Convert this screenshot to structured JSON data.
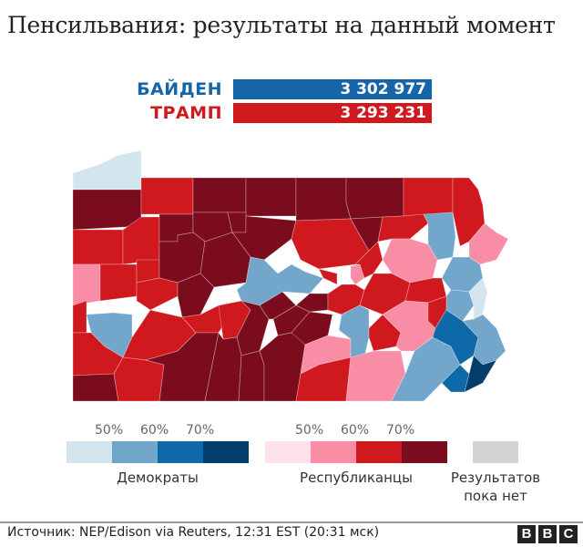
{
  "title": "Пенсильвания: результаты на данный момент",
  "candidates": [
    {
      "name": "БАЙДЕН",
      "votes": "3 302 977",
      "color": "#1565a8"
    },
    {
      "name": "ТРАМП",
      "votes": "3 293 231",
      "color": "#d0191f"
    }
  ],
  "colors": {
    "d1": "#d3e6ef",
    "d2": "#72a6cb",
    "d3": "#0e69a8",
    "d4": "#033d6a",
    "r1": "#fde2ea",
    "r2": "#f88da5",
    "r3": "#d0191f",
    "r4": "#7a0c1e",
    "none": "#d4d4d4"
  },
  "legend": {
    "democrats": {
      "label": "Демократы",
      "ticks": [
        "50%",
        "60%",
        "70%"
      ]
    },
    "republicans": {
      "label": "Республиканцы",
      "ticks": [
        "50%",
        "60%",
        "70%"
      ]
    },
    "no_results": {
      "label_line1": "Результатов",
      "label_line2": "пока нет"
    }
  },
  "footer": {
    "source": "Источник: NEP/Edison via Reuters, 12:31 EST (20:31 мск)",
    "logo": [
      "B",
      "B",
      "C"
    ]
  },
  "map_regions": [
    {
      "name": "erie",
      "c": "d1",
      "p": "80,208 80,190 110,180 130,170 155,165 155,208"
    },
    {
      "name": "crawford",
      "c": "r4",
      "p": "80,208 155,208 155,248 80,252"
    },
    {
      "name": "warren",
      "c": "r3",
      "p": "155,195 212,195 212,235 155,235"
    },
    {
      "name": "mckean",
      "c": "r4",
      "p": "212,195 270,195 270,233 212,233"
    },
    {
      "name": "potter",
      "c": "r4",
      "p": "270,195 325,195 325,237 270,237"
    },
    {
      "name": "tioga",
      "c": "r4",
      "p": "325,195 380,195 380,222 385,240 325,242"
    },
    {
      "name": "bradford",
      "c": "r4",
      "p": "380,195 443,195 443,237 420,238 385,240 380,222"
    },
    {
      "name": "susquehanna",
      "c": "r3",
      "p": "443,195 497,195 497,233 443,237"
    },
    {
      "name": "wayne",
      "c": "r3",
      "p": "497,195 515,195 525,208 530,225 532,245 515,265 505,270 497,233"
    },
    {
      "name": "mercer",
      "c": "r3",
      "p": "80,252 135,252 135,290 80,290"
    },
    {
      "name": "venango",
      "c": "r3",
      "p": "135,252 155,238 175,238 175,285 135,290"
    },
    {
      "name": "forest",
      "c": "r4",
      "p": "175,235 212,235 212,255 195,258 195,265 175,265"
    },
    {
      "name": "elk",
      "c": "r4",
      "p": "212,233 250,233 255,255 225,265 212,255"
    },
    {
      "name": "cameron",
      "c": "r4",
      "p": "250,233 270,233 270,255 255,255"
    },
    {
      "name": "clinton",
      "c": "r4",
      "p": "270,237 325,242 320,262 290,285 275,282 255,255 270,255"
    },
    {
      "name": "lycoming",
      "c": "r3",
      "p": "325,242 385,240 395,258 405,275 390,290 350,295 330,285 320,262"
    },
    {
      "name": "sullivan",
      "c": "r4",
      "p": "385,240 420,238 415,265 405,275 395,258"
    },
    {
      "name": "wyoming",
      "c": "r3",
      "p": "420,238 443,237 465,235 470,245 450,262 430,262 415,265"
    },
    {
      "name": "lackawanna",
      "c": "d2",
      "p": "465,235 497,233 500,260 497,282 480,285 470,268 470,245"
    },
    {
      "name": "pike",
      "c": "r2",
      "p": "515,265 532,245 545,255 558,262 545,285 527,290 515,282"
    },
    {
      "name": "lawrence",
      "c": "r2",
      "p": "80,290 110,290 110,330 80,335"
    },
    {
      "name": "butler",
      "c": "r3",
      "p": "110,290 150,290 150,325 110,330"
    },
    {
      "name": "clarion",
      "c": "r3",
      "p": "150,285 175,285 175,305 150,310"
    },
    {
      "name": "jefferson",
      "c": "r4",
      "p": "175,265 195,265 195,258 212,255 225,265 220,300 195,310 175,305"
    },
    {
      "name": "clearfield",
      "c": "r4",
      "p": "225,265 255,255 275,282 270,310 235,315 220,300"
    },
    {
      "name": "centre",
      "c": "d2",
      "p": "275,282 290,285 305,300 320,290 335,298 355,305 340,322 310,320 285,335 265,330 260,318 270,310"
    },
    {
      "name": "union",
      "c": "r3",
      "p": "350,295 370,300 370,312 355,305"
    },
    {
      "name": "montour",
      "c": "r2",
      "p": "385,292 395,290 400,305 390,312 385,305"
    },
    {
      "name": "columbia",
      "c": "r3",
      "p": "390,290 405,275 415,265 420,285 410,300 400,305 395,290"
    },
    {
      "name": "luzerne",
      "c": "r2",
      "p": "430,262 450,262 470,268 480,285 475,305 450,310 430,300 420,285"
    },
    {
      "name": "monroe",
      "c": "d2",
      "p": "497,282 515,282 527,290 530,305 515,320 495,318 485,305"
    },
    {
      "name": "beaver",
      "c": "r3",
      "p": "80,335 95,330 95,365 80,365"
    },
    {
      "name": "allegheny",
      "c": "d2",
      "p": "95,345 125,343 145,345 145,370 135,392 115,380 100,365"
    },
    {
      "name": "armstrong",
      "c": "r3",
      "p": "150,310 175,305 195,310 195,325 165,340 150,330"
    },
    {
      "name": "indiana",
      "c": "r4",
      "p": "195,310 220,300 235,315 220,345 200,348 195,325"
    },
    {
      "name": "cambria",
      "c": "r3",
      "p": "200,348 220,345 240,335 255,340 240,365 215,365"
    },
    {
      "name": "blair",
      "c": "r3",
      "p": "240,335 265,330 275,340 260,370 245,372"
    },
    {
      "name": "huntingdon",
      "c": "r4",
      "p": "265,330 285,335 295,350 285,385 265,390 260,370 275,340"
    },
    {
      "name": "mifflin",
      "c": "r4",
      "p": "285,335 310,320 325,335 300,350 295,350"
    },
    {
      "name": "juniata",
      "c": "r4",
      "p": "300,350 325,335 340,342 320,365 305,368"
    },
    {
      "name": "snyder",
      "c": "r4",
      "p": "325,335 340,322 360,322 360,340 340,342"
    },
    {
      "name": "perry",
      "c": "r4",
      "p": "305,368 320,365 340,342 365,345 360,368 335,378"
    },
    {
      "name": "northumberland",
      "c": "r3",
      "p": "360,322 375,312 390,312 400,318 395,335 375,345 360,340"
    },
    {
      "name": "schuylkill",
      "c": "r3",
      "p": "400,318 410,300 430,300 450,310 445,330 420,345 395,335"
    },
    {
      "name": "carbon",
      "c": "r3",
      "p": "450,310 475,305 485,305 490,325 470,332 445,330"
    },
    {
      "name": "northampton",
      "c": "d2",
      "p": "495,318 515,320 520,335 508,352 490,340 490,325"
    },
    {
      "name": "bucks-upper",
      "c": "d1",
      "p": "515,320 530,305 535,320 530,345 520,350 520,335"
    },
    {
      "name": "washington",
      "c": "r3",
      "p": "80,365 100,365 115,380 135,392 125,410 80,412"
    },
    {
      "name": "westmoreland",
      "c": "r3",
      "p": "145,370 165,340 200,348 215,365 195,385 160,395 135,392"
    },
    {
      "name": "greene",
      "c": "r4",
      "p": "80,412 125,410 130,440 80,440"
    },
    {
      "name": "fayette",
      "c": "r3",
      "p": "125,410 135,392 160,395 180,400 175,440 130,440"
    },
    {
      "name": "somerset",
      "c": "r4",
      "p": "160,395 195,385 215,365 240,365 235,390 225,440 175,440 180,400"
    },
    {
      "name": "bedford",
      "c": "r4",
      "p": "240,365 245,372 260,370 265,390 262,440 225,440 235,390"
    },
    {
      "name": "fulton",
      "c": "r4",
      "p": "265,390 285,385 290,400 290,440 262,440"
    },
    {
      "name": "franklin",
      "c": "r4",
      "p": "285,385 305,368 320,365 335,378 330,410 325,440 290,440 290,400"
    },
    {
      "name": "cumberland",
      "c": "r2",
      "p": "335,378 360,368 385,372 385,392 350,400 330,410"
    },
    {
      "name": "dauphin",
      "c": "d2",
      "p": "375,345 395,335 405,340 405,370 400,392 385,392 385,372 372,362"
    },
    {
      "name": "lebanon",
      "c": "r3",
      "p": "405,360 420,345 440,365 435,380 410,385 405,370"
    },
    {
      "name": "adams",
      "c": "r3",
      "p": "330,410 350,400 385,392 380,440 325,440"
    },
    {
      "name": "york",
      "c": "r2",
      "p": "385,392 410,385 440,385 445,410 430,440 380,440"
    },
    {
      "name": "lancaster",
      "c": "r2",
      "p": "420,345 445,330 470,332 490,340 475,370 455,385 440,385 435,380 440,365"
    },
    {
      "name": "berks",
      "c": "r3",
      "p": "470,332 490,325 490,340 478,360 470,352"
    },
    {
      "name": "chester",
      "c": "d2",
      "p": "455,385 475,370 495,380 505,400 485,420 465,440 430,440 445,410"
    },
    {
      "name": "montgomery",
      "c": "d3",
      "p": "478,360 490,340 508,352 525,370 520,390 505,400 495,380 475,370"
    },
    {
      "name": "bucks",
      "c": "d2",
      "p": "508,352 520,350 530,345 545,360 555,385 545,395 530,400 520,390 525,370"
    },
    {
      "name": "delaware",
      "c": "d3",
      "p": "485,420 505,400 515,410 510,430 495,430"
    },
    {
      "name": "philadelphia",
      "c": "d4",
      "p": "515,410 520,390 530,400 545,395 530,420 510,430"
    }
  ]
}
